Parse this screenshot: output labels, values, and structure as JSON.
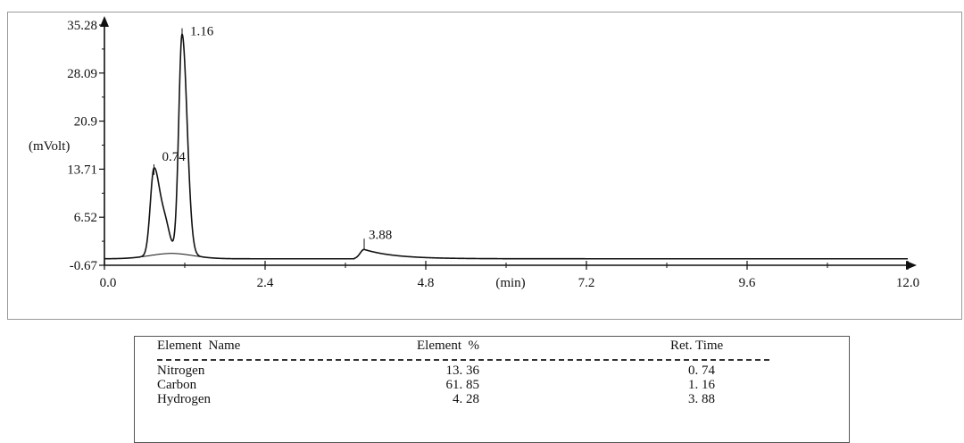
{
  "chart_data": {
    "type": "line",
    "ylabel": "(mVolt)",
    "xlabel": "(min)",
    "xlim": [
      0.0,
      12.0
    ],
    "ylim": [
      -0.67,
      35.28
    ],
    "x_ticks": [
      "0.0",
      "2.4",
      "4.8",
      "7.2",
      "9.6",
      "12.0"
    ],
    "y_ticks": [
      "35.28",
      "28.09",
      "20.9",
      "13.71",
      "6.52",
      "-0.67"
    ],
    "baseline": 0.3,
    "peaks": [
      {
        "label": "0.74",
        "rt": 0.74,
        "height": 13.1
      },
      {
        "label": "1.16",
        "rt": 1.16,
        "height": 33.2
      },
      {
        "label": "3.88",
        "rt": 3.88,
        "height": 1.7
      }
    ]
  },
  "table": {
    "headers": {
      "name": "Element  Name",
      "percent": "Element  %",
      "ret": "Ret. Time"
    },
    "rows": [
      {
        "name": "Nitrogen",
        "percent": "13. 36",
        "ret": "0. 74"
      },
      {
        "name": "Carbon",
        "percent": "61. 85",
        "ret": "1. 16"
      },
      {
        "name": "Hydrogen",
        "percent": "4. 28",
        "ret": "3. 88"
      }
    ]
  }
}
